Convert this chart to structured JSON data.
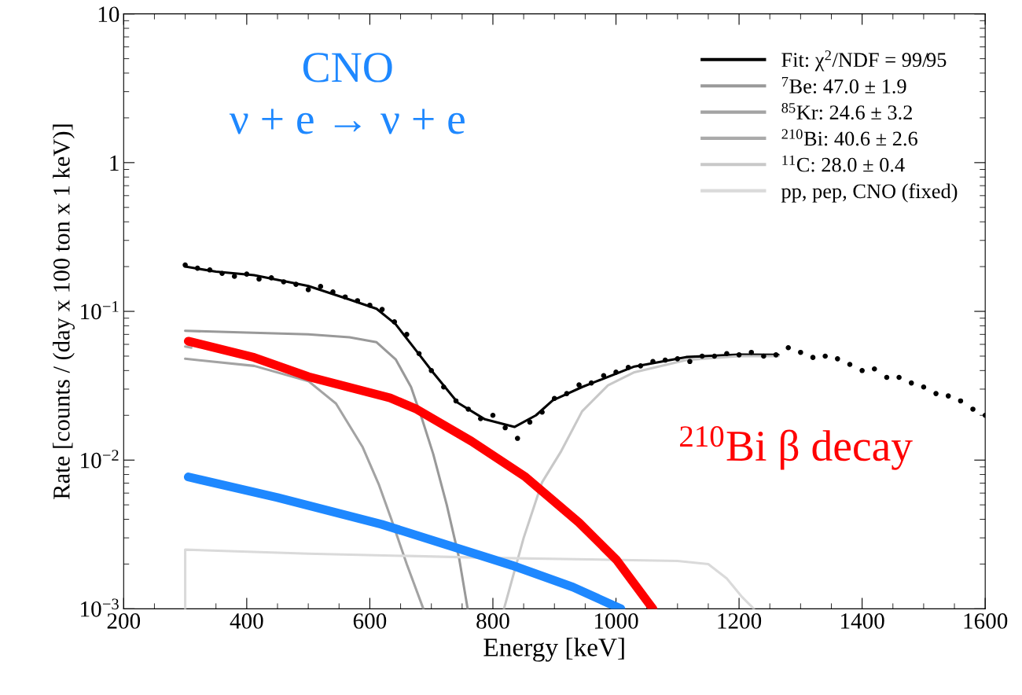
{
  "chart_data": {
    "type": "line",
    "xlabel": "Energy [keV]",
    "ylabel": "Rate [counts / (day x 100 ton x 1 keV)]",
    "log": "y",
    "xlim": [
      200,
      1600
    ],
    "xticks": [
      200,
      400,
      600,
      800,
      1000,
      1200,
      1400,
      1600
    ],
    "ylim": [
      0.001,
      10
    ],
    "yticks": [
      {
        "value": 0.001,
        "label": "10$^{−3}$"
      },
      {
        "value": 0.01,
        "label": "10$^{−2}$"
      },
      {
        "value": 0.1,
        "label": "10$^{−1}$"
      },
      1,
      10
    ],
    "grid": false,
    "legend": "top right",
    "series": [
      {
        "type": "scatter",
        "color": "#000000",
        "marker": "circle",
        "x": [
          300,
          320,
          340,
          360,
          380,
          400,
          420,
          440,
          460,
          480,
          500,
          520,
          540,
          560,
          580,
          600,
          620,
          640,
          660,
          680,
          700,
          720,
          740,
          760,
          780,
          800,
          820,
          840,
          860,
          880,
          900,
          920,
          940,
          960,
          980,
          1000,
          1020,
          1040,
          1060,
          1080,
          1100,
          1120,
          1140,
          1160,
          1180,
          1200,
          1220,
          1240,
          1260,
          1280,
          1300,
          1320,
          1340,
          1360,
          1380,
          1400,
          1420,
          1440,
          1460,
          1480,
          1500,
          1520,
          1540,
          1560,
          1580,
          1600
        ],
        "values": [
          0.205,
          0.195,
          0.19,
          0.18,
          0.172,
          0.178,
          0.165,
          0.168,
          0.158,
          0.152,
          0.14,
          0.147,
          0.135,
          0.125,
          0.118,
          0.11,
          0.103,
          0.085,
          0.07,
          0.052,
          0.04,
          0.031,
          0.025,
          0.022,
          0.019,
          0.02,
          0.0165,
          0.014,
          0.018,
          0.021,
          0.026,
          0.028,
          0.032,
          0.033,
          0.037,
          0.039,
          0.042,
          0.043,
          0.046,
          0.047,
          0.048,
          0.046,
          0.05,
          0.05,
          0.052,
          0.051,
          0.053,
          0.05,
          0.051,
          0.057,
          0.053,
          0.049,
          0.05,
          0.048,
          0.044,
          0.04,
          0.041,
          0.036,
          0.036,
          0.033,
          0.031,
          0.028,
          0.027,
          0.025,
          0.022,
          0.02
        ]
      },
      {
        "name": "Fit: χ$^{2}$/NDF = 99/95",
        "color": "#000000",
        "x": [
          300,
          350,
          412,
          500,
          567,
          611,
          642,
          676,
          703,
          743,
          787,
          835,
          870,
          897,
          945,
          968,
          1030,
          1114,
          1200,
          1264
        ],
        "values": [
          0.2,
          0.185,
          0.175,
          0.148,
          0.12,
          0.104,
          0.082,
          0.054,
          0.0387,
          0.0243,
          0.0188,
          0.0167,
          0.02,
          0.0252,
          0.031,
          0.0338,
          0.0426,
          0.0493,
          0.0512,
          0.051
        ]
      },
      {
        "name": "$^{7}$Be: 47.0 ± 1.9",
        "color": "#999999",
        "x": [
          300,
          400,
          500,
          567,
          611,
          642,
          667,
          685,
          703,
          725,
          745,
          759
        ],
        "values": [
          0.074,
          0.072,
          0.07,
          0.067,
          0.062,
          0.0476,
          0.031,
          0.0188,
          0.011,
          0.005,
          0.0022,
          0.001
        ]
      },
      {
        "name": "$^{85}$Kr: 24.6 ± 3.2",
        "color": "#a3a3a3",
        "x": [
          300,
          412,
          500,
          545,
          588,
          615,
          635,
          660,
          687
        ],
        "values": [
          0.048,
          0.043,
          0.034,
          0.024,
          0.0123,
          0.0068,
          0.004,
          0.002,
          0.001
        ]
      },
      {
        "name": "$^{210}$Bi: 40.6 ± 2.6",
        "color": "#aaaaaa",
        "x": [
          300,
          310
        ],
        "values": [
          0.058,
          0.057
        ]
      },
      {
        "name": "$^{11}$C: 28.0 ± 0.4",
        "color": "#c8c8c8",
        "x": [
          818,
          850,
          880,
          910,
          945,
          987,
          1030,
          1114,
          1200,
          1264
        ],
        "values": [
          0.001,
          0.003,
          0.0071,
          0.0113,
          0.0213,
          0.0318,
          0.039,
          0.047,
          0.05,
          0.05
        ]
      },
      {
        "name": "pp, pep, CNO (fixed)",
        "color": "#dadada",
        "x": [
          300,
          300,
          500,
          800,
          1100,
          1150,
          1180,
          1205,
          1224
        ],
        "values": [
          0.001,
          0.0025,
          0.00235,
          0.0022,
          0.0021,
          0.002,
          0.0016,
          0.0012,
          0.001
        ]
      },
      {
        "name": "$^{210}$Bi β decay",
        "color": "#ff0000",
        "x": [
          305,
          412,
          500,
          633,
          676,
          765,
          853,
          940,
          1001,
          1060
        ],
        "values": [
          0.063,
          0.049,
          0.0364,
          0.0262,
          0.022,
          0.0134,
          0.0077,
          0.0038,
          0.00213,
          0.001
        ]
      },
      {
        "name": "CNO\nν + e → ν + e",
        "color": "#1e88ff",
        "x": [
          305,
          450,
          619,
          831,
          930,
          1008
        ],
        "values": [
          0.0077,
          0.0056,
          0.0037,
          0.00196,
          0.0014,
          0.001
        ]
      }
    ]
  }
}
